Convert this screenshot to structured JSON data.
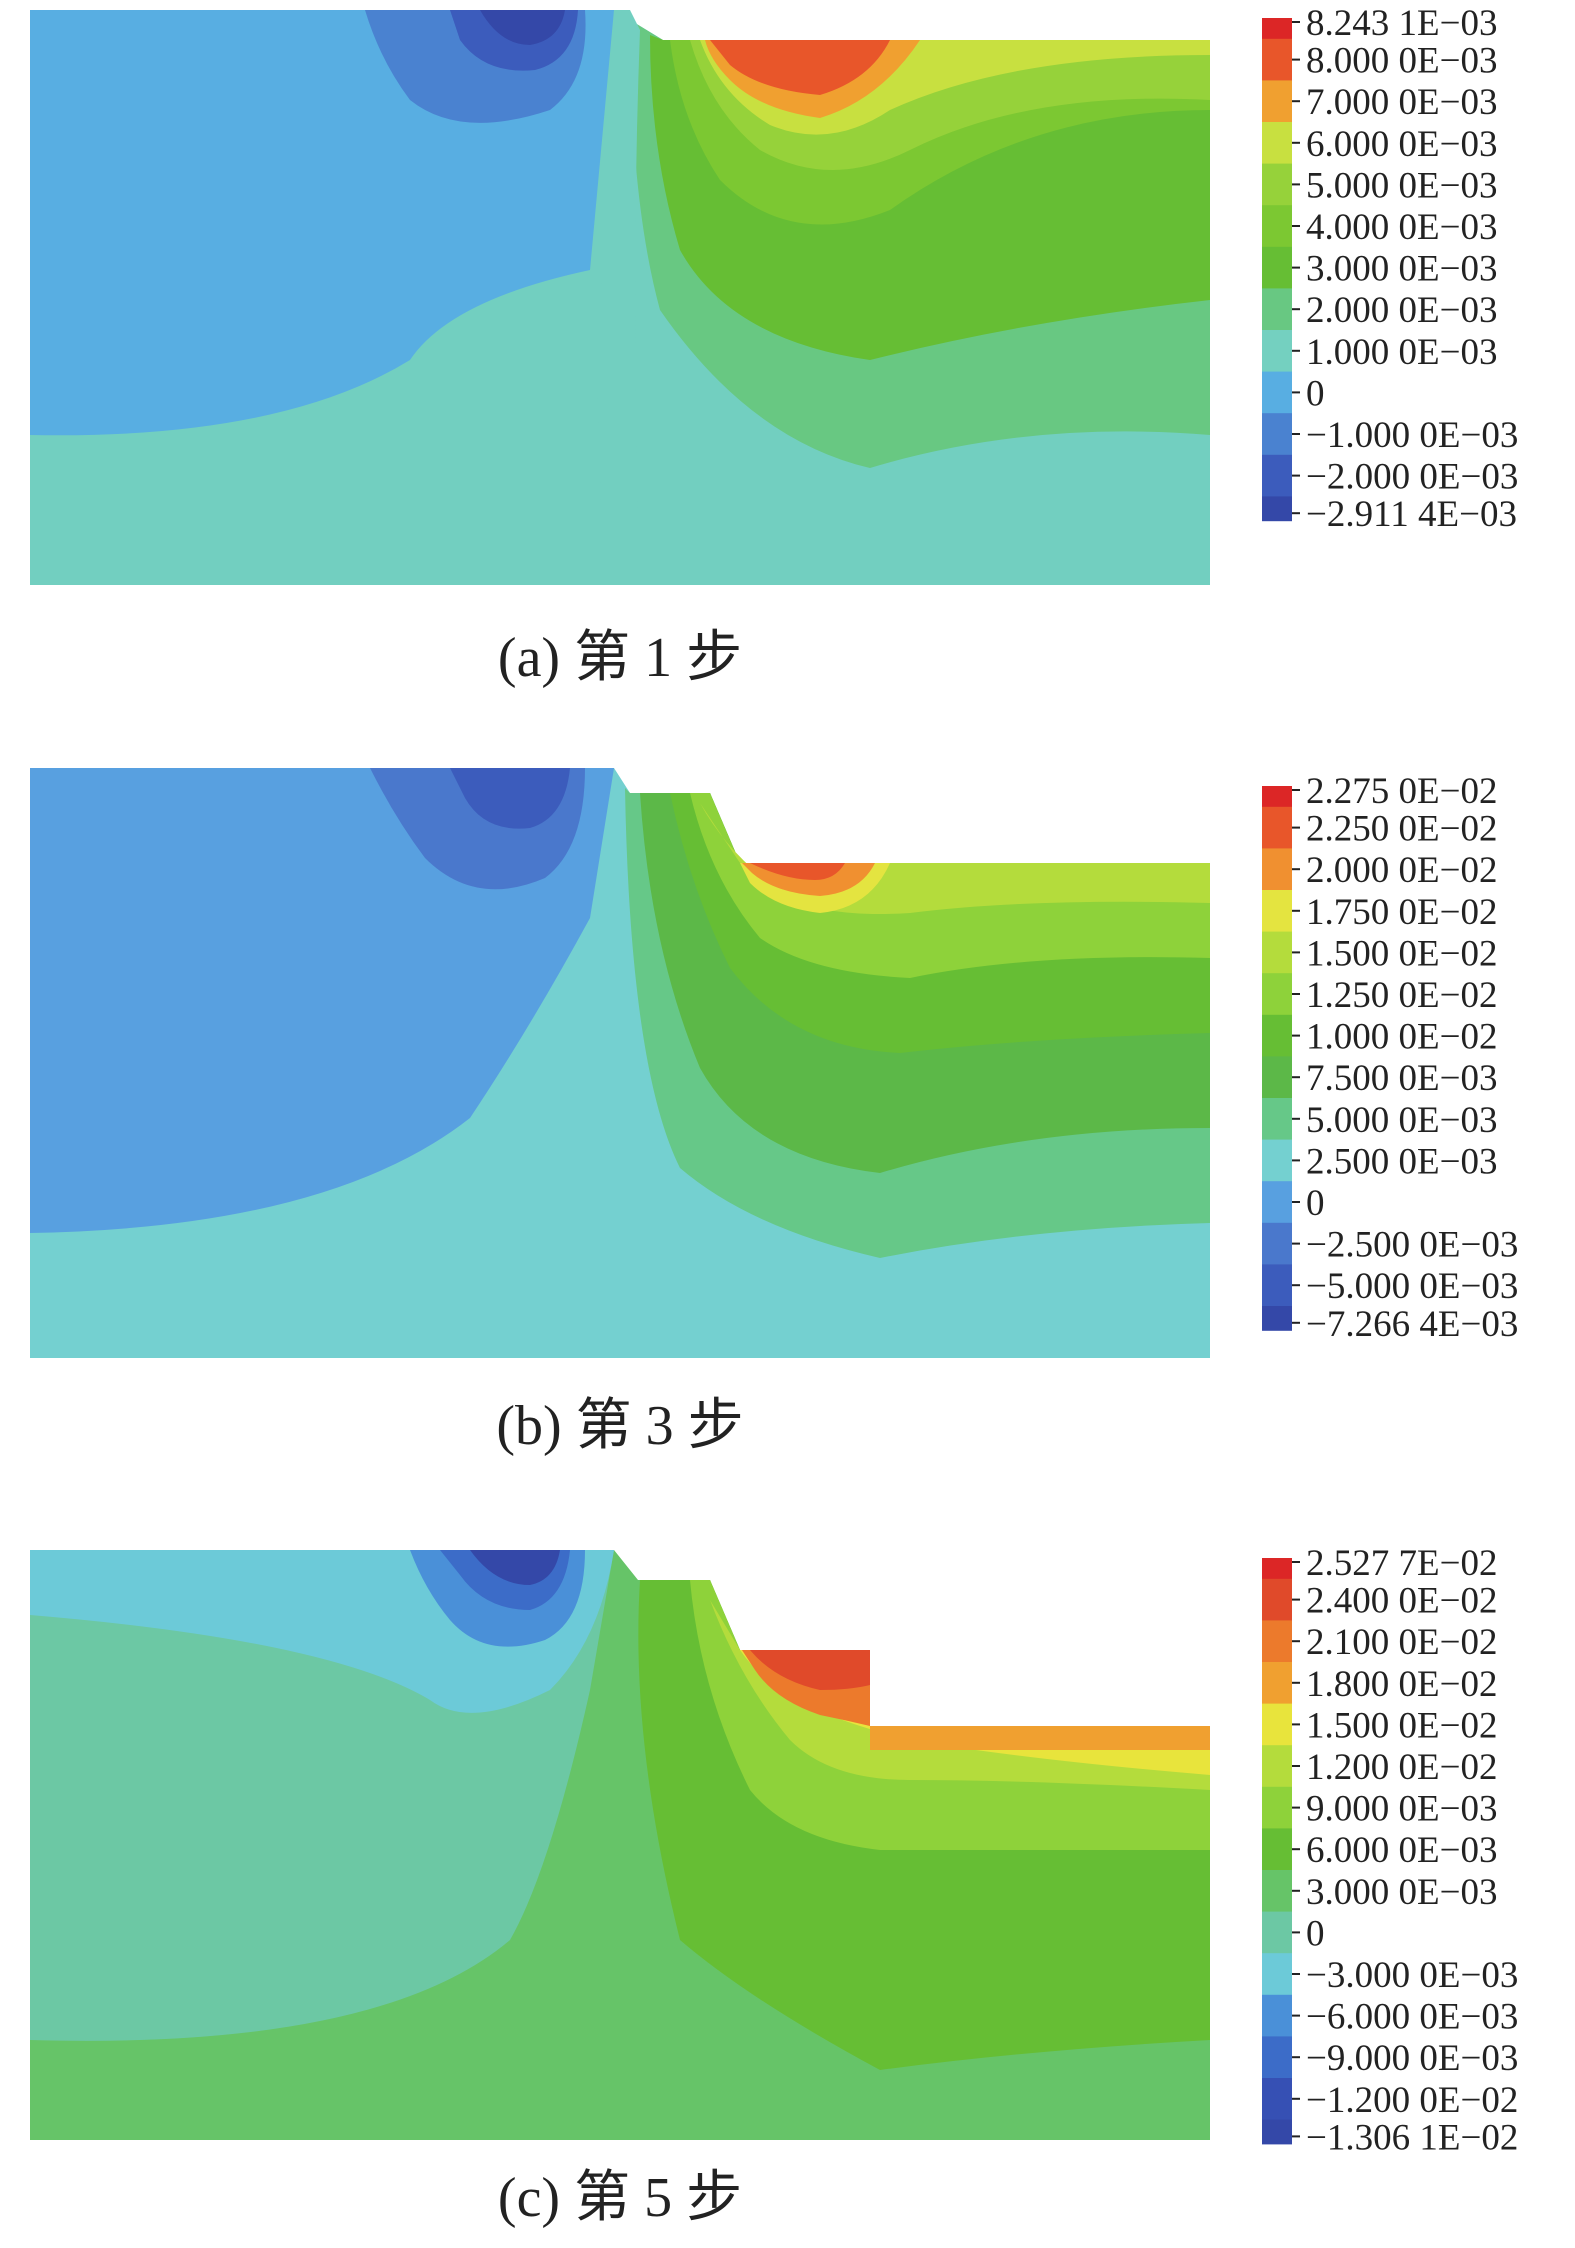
{
  "chart_data": [
    {
      "type": "heatmap",
      "caption": "(a) 第 1 步",
      "legend": {
        "position": "right",
        "levels": [
          "8.243 1E−03",
          "8.000 0E−03",
          "7.000 0E−03",
          "6.000 0E−03",
          "5.000 0E−03",
          "4.000 0E−03",
          "3.000 0E−03",
          "2.000 0E−03",
          "1.000 0E−03",
          "0",
          "−1.000 0E−03",
          "−2.000 0E−03",
          "−2.911 4E−03"
        ],
        "values": [
          0.0082431,
          0.008,
          0.007,
          0.006,
          0.005,
          0.004,
          0.003,
          0.002,
          0.001,
          0,
          -0.001,
          -0.002,
          -0.0029114
        ],
        "colors": [
          "#dc2626",
          "#e8562a",
          "#f0a030",
          "#c8e040",
          "#96d23a",
          "#7cc832",
          "#66be34",
          "#68c882",
          "#74d0c0",
          "#58aee2",
          "#4a82d0",
          "#3c5cbc",
          "#3448a8"
        ]
      },
      "range": [
        -0.0029114,
        0.0082431
      ]
    },
    {
      "type": "heatmap",
      "caption": "(b) 第 3 步",
      "legend": {
        "position": "right",
        "levels": [
          "2.275 0E−02",
          "2.250 0E−02",
          "2.000 0E−02",
          "1.750 0E−02",
          "1.500 0E−02",
          "1.250 0E−02",
          "1.000 0E−02",
          "7.500 0E−03",
          "5.000 0E−03",
          "2.500 0E−03",
          "0",
          "−2.500 0E−03",
          "−5.000 0E−03",
          "−7.266 4E−03"
        ],
        "values": [
          0.02275,
          0.0225,
          0.02,
          0.0175,
          0.015,
          0.0125,
          0.01,
          0.0075,
          0.005,
          0.0025,
          0,
          -0.0025,
          -0.005,
          -0.0072664
        ],
        "colors": [
          "#dc2626",
          "#e8562a",
          "#f09030",
          "#e4e440",
          "#b4dc3c",
          "#8ed23a",
          "#66be34",
          "#5cb848",
          "#66c888",
          "#74d0d0",
          "#58a0e0",
          "#4a78cc",
          "#3c5cbc",
          "#3448a8"
        ]
      },
      "range": [
        -0.0072664,
        0.02275
      ]
    },
    {
      "type": "heatmap",
      "caption": "(c) 第 5 步",
      "legend": {
        "position": "right",
        "levels": [
          "2.527 7E−02",
          "2.400 0E−02",
          "2.100 0E−02",
          "1.800 0E−02",
          "1.500 0E−02",
          "1.200 0E−02",
          "9.000 0E−03",
          "6.000 0E−03",
          "3.000 0E−03",
          "0",
          "−3.000 0E−03",
          "−6.000 0E−03",
          "−9.000 0E−03",
          "−1.200 0E−02",
          "−1.306 1E−02"
        ],
        "values": [
          0.025277,
          0.024,
          0.021,
          0.018,
          0.015,
          0.012,
          0.009,
          0.006,
          0.003,
          0,
          -0.003,
          -0.006,
          -0.009,
          -0.012,
          -0.013061
        ],
        "colors": [
          "#dc2626",
          "#e04a2a",
          "#ec7a2c",
          "#f0a030",
          "#e8e43c",
          "#b4dc3c",
          "#8ed23a",
          "#66be34",
          "#66c468",
          "#6cc8a4",
          "#6ccad8",
          "#4a90d8",
          "#3c6cc8",
          "#3650b4",
          "#3448a8"
        ]
      },
      "range": [
        -0.013061,
        0.025277
      ]
    }
  ]
}
